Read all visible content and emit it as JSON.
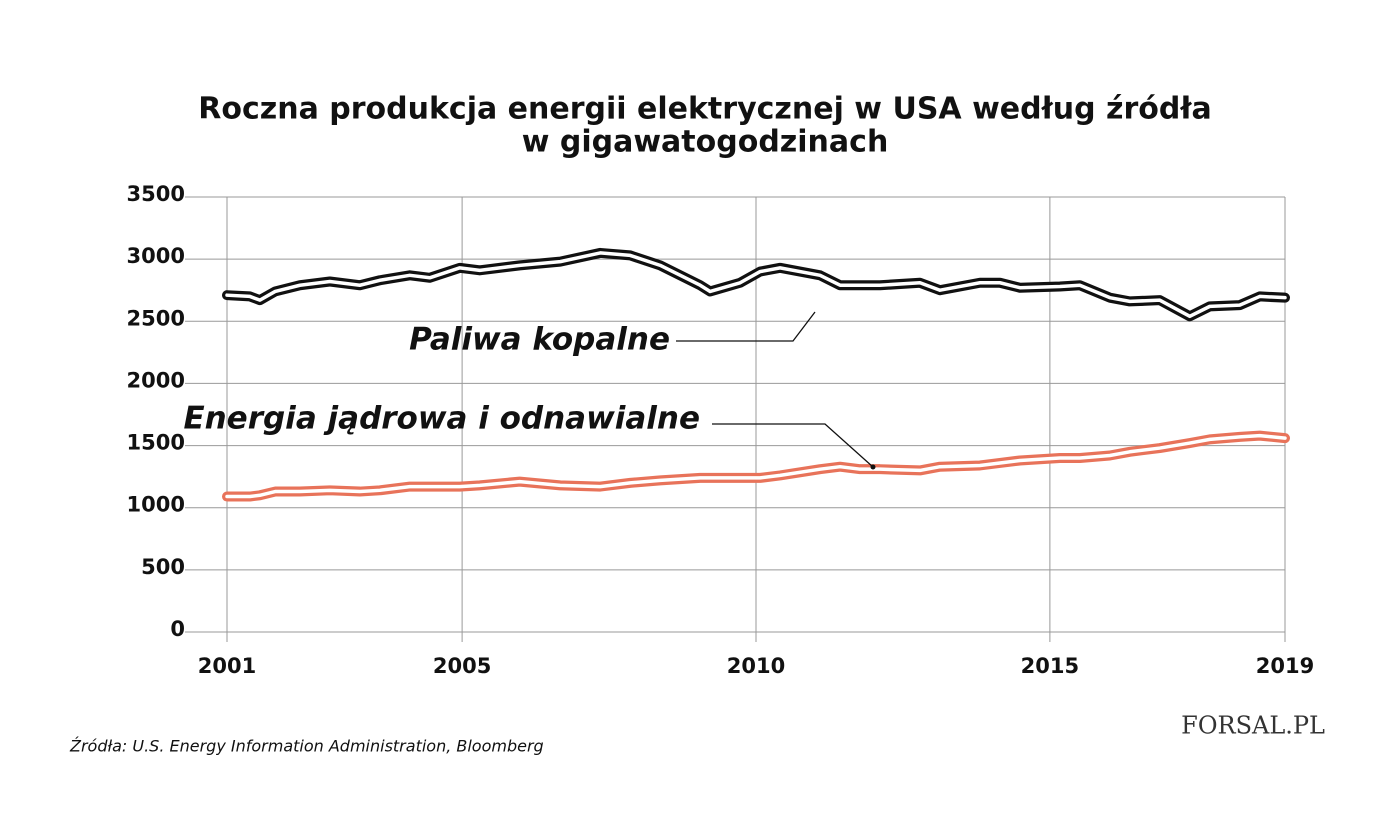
{
  "chart_data": {
    "type": "line",
    "title": "Roczna produkcja energii elektrycznej w USA według źródła",
    "subtitle": "w gigawatogodzinach",
    "x": [
      2001.0,
      2001.39,
      2001.56,
      2001.82,
      2002.24,
      2002.75,
      2003.26,
      2003.6,
      2004.11,
      2004.45,
      2004.96,
      2005.3,
      2005.98,
      2006.67,
      2007.35,
      2007.86,
      2008.37,
      2009.05,
      2009.22,
      2009.73,
      2010.07,
      2010.41,
      2011.09,
      2011.43,
      2011.77,
      2012.11,
      2012.79,
      2013.13,
      2013.81,
      2014.15,
      2014.49,
      2015.17,
      2015.51,
      2016.02,
      2016.36,
      2016.87,
      2017.38,
      2017.72,
      2018.23,
      2018.57,
      2019.0
    ],
    "series": [
      {
        "name": "Paliwa kopalne",
        "color": "#111111",
        "values": [
          2710,
          2700,
          2670,
          2740,
          2790,
          2820,
          2790,
          2830,
          2870,
          2850,
          2930,
          2910,
          2950,
          2980,
          3050,
          3030,
          2950,
          2790,
          2740,
          2810,
          2900,
          2930,
          2870,
          2790,
          2790,
          2790,
          2810,
          2750,
          2810,
          2810,
          2770,
          2780,
          2790,
          2690,
          2660,
          2670,
          2540,
          2620,
          2630,
          2700,
          2690
        ]
      },
      {
        "name": "Energia jądrowa i odnawialne",
        "color": "#e8735a",
        "values": [
          1090,
          1090,
          1100,
          1130,
          1130,
          1140,
          1130,
          1140,
          1170,
          1170,
          1170,
          1180,
          1210,
          1180,
          1170,
          1200,
          1220,
          1240,
          1240,
          1240,
          1240,
          1260,
          1310,
          1330,
          1310,
          1310,
          1300,
          1330,
          1340,
          1360,
          1380,
          1400,
          1400,
          1420,
          1450,
          1480,
          1520,
          1550,
          1570,
          1580,
          1560
        ]
      }
    ],
    "xlim": [
      2001,
      2019
    ],
    "xticks": [
      2001,
      2005,
      2010,
      2015,
      2019
    ],
    "ylim": [
      0,
      3500
    ],
    "yticks": [
      0,
      500,
      1000,
      1500,
      2000,
      2500,
      3000,
      3500
    ],
    "grid": true,
    "source": "Źródła: U.S. Energy Information Administration, Bloomberg",
    "logo": "FORSAL.PL"
  }
}
